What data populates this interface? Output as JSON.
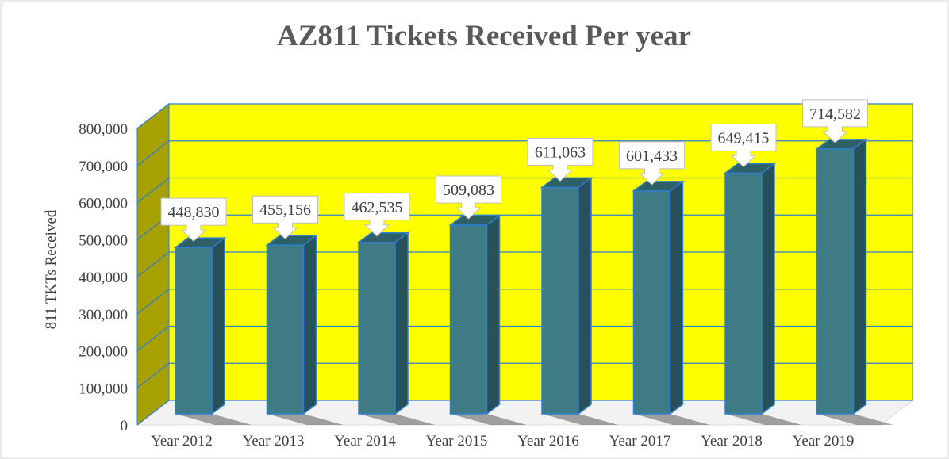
{
  "chart_data": {
    "type": "bar3d",
    "title": "AZ811 Tickets Received Per year",
    "y_label": "811 TKTs Received",
    "categories": [
      "Year 2012",
      "Year 2013",
      "Year 2014",
      "Year 2015",
      "Year 2016",
      "Year 2017",
      "Year 2018",
      "Year 2019"
    ],
    "values": [
      448830,
      455156,
      462535,
      509083,
      611063,
      601433,
      649415,
      714582
    ],
    "value_labels": [
      "448,830",
      "455,156",
      "462,535",
      "509,083",
      "611,063",
      "601,433",
      "649,415",
      "714,582"
    ],
    "color": "#3f7b85",
    "ylim": [
      0,
      800000
    ],
    "yticks": [
      0,
      {
        "value": 100000,
        "label": "100,000"
      },
      {
        "value": 200000,
        "label": "200,000"
      },
      {
        "value": 300000,
        "label": "300,000"
      },
      {
        "value": 400000,
        "label": "400,000"
      },
      {
        "value": 500000,
        "label": "500,000"
      },
      {
        "value": 600000,
        "label": "600,000"
      },
      {
        "value": 700000,
        "label": "700,000"
      },
      {
        "value": 800000,
        "label": "800,000"
      }
    ],
    "grid": true,
    "wall_color": "#ffff00",
    "side_wall_color": "#a6a000"
  }
}
